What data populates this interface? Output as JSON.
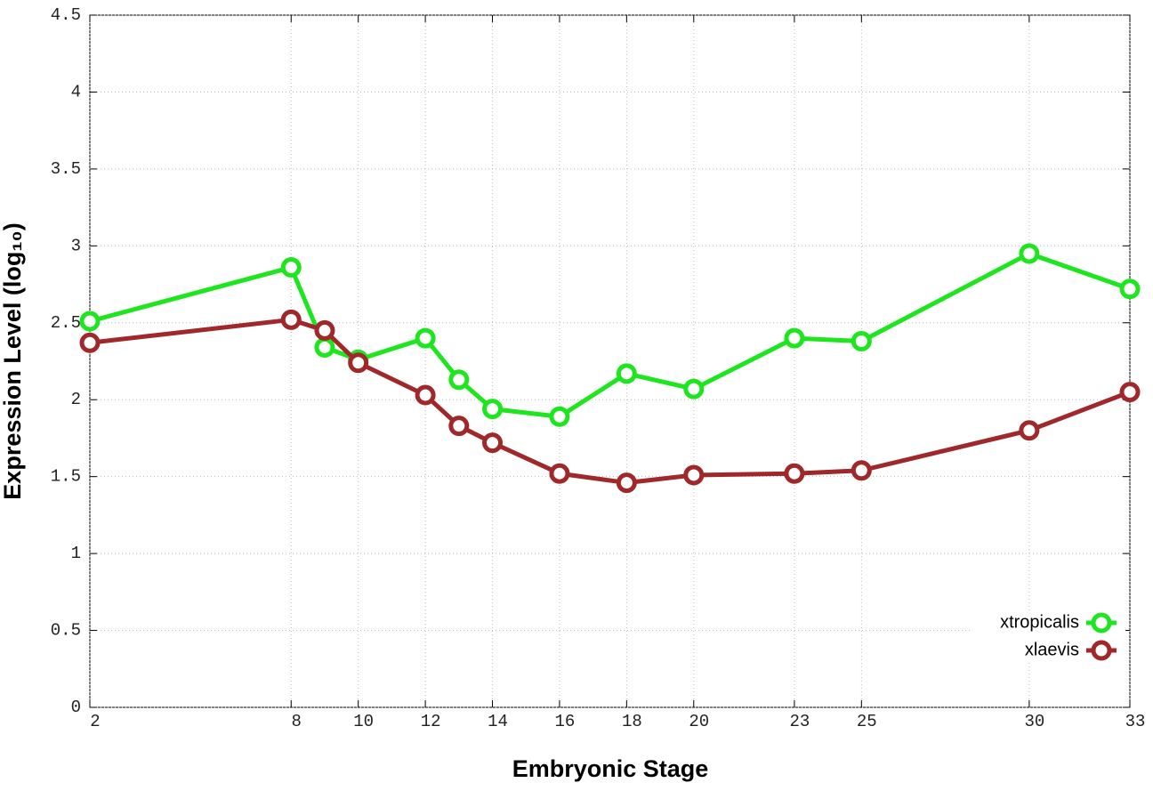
{
  "chart_data": {
    "type": "line",
    "xlabel": "Embryonic Stage",
    "ylabel": "Expression Level (log₁₀)",
    "x": [
      2,
      8,
      9,
      10,
      12,
      13,
      14,
      16,
      18,
      20,
      23,
      25,
      30,
      33
    ],
    "series": [
      {
        "name": "xtropicalis",
        "color": "#1ee61e",
        "values": [
          2.51,
          2.86,
          2.34,
          2.26,
          2.4,
          2.13,
          1.94,
          1.89,
          2.17,
          2.07,
          2.4,
          2.38,
          2.95,
          2.72
        ]
      },
      {
        "name": "xlaevis",
        "color": "#a0282a",
        "values": [
          2.37,
          2.52,
          2.45,
          2.24,
          2.03,
          1.83,
          1.72,
          1.52,
          1.46,
          1.51,
          1.52,
          1.54,
          1.8,
          2.05
        ]
      }
    ],
    "xlim": [
      2,
      33
    ],
    "xticks": [
      2,
      8,
      10,
      12,
      14,
      16,
      18,
      20,
      23,
      25,
      30,
      33
    ],
    "ylim": [
      0,
      4.5
    ],
    "yticks": [
      0,
      0.5,
      1,
      1.5,
      2,
      2.5,
      3,
      3.5,
      4,
      4.5
    ],
    "grid": true,
    "legend": "lower right"
  }
}
